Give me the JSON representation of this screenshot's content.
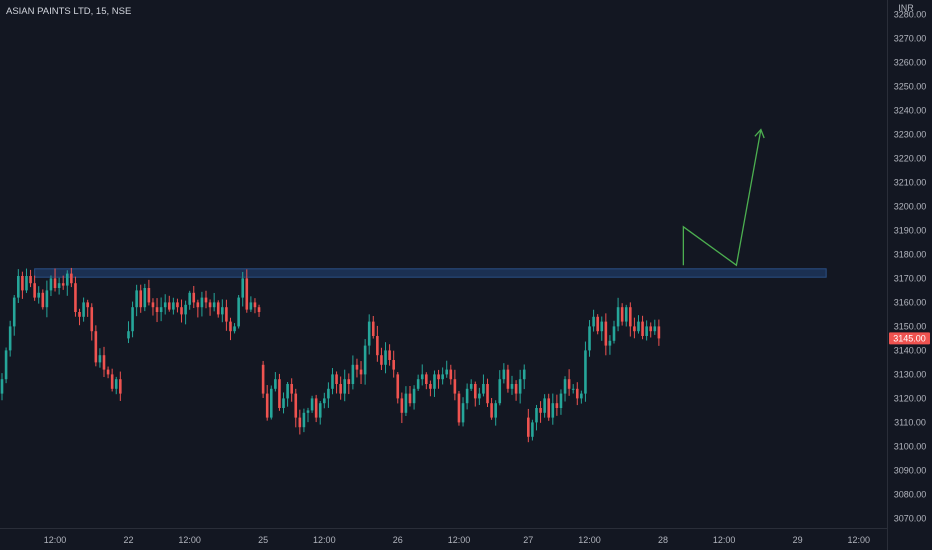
{
  "header": {
    "symbol_title": "ASIAN PAINTS LTD, 15, NSE",
    "currency": "INR"
  },
  "colors": {
    "background": "#131722",
    "up": "#26a69a",
    "down": "#ef5350",
    "zone": "#1f3a63",
    "zone_border": "#2a4f85",
    "arrow": "#4caf50",
    "text": "#b2b5be",
    "last_price_bg": "#ef5350"
  },
  "chart_data": {
    "type": "candlestick",
    "title": "ASIAN PAINTS LTD, 15, NSE",
    "currency": "INR",
    "ylim": [
      3066,
      3286
    ],
    "y_ticks": [
      3280,
      3270,
      3260,
      3250,
      3240,
      3230,
      3220,
      3210,
      3200,
      3190,
      3180,
      3170,
      3160,
      3150,
      3140,
      3130,
      3120,
      3110,
      3100,
      3090,
      3080,
      3070
    ],
    "y_tick_labels": [
      "3280.00",
      "3270.00",
      "3260.00",
      "3250.00",
      "3240.00",
      "3230.00",
      "3220.00",
      "3210.00",
      "3200.00",
      "3190.00",
      "3180.00",
      "3170.00",
      "3160.00",
      "3150.00",
      "3140.00",
      "3130.00",
      "3120.00",
      "3110.00",
      "3100.00",
      "3090.00",
      "3080.00",
      "3070.00"
    ],
    "x_ticks": [
      {
        "label": "12:00",
        "bar": 13
      },
      {
        "label": "22",
        "bar": 31
      },
      {
        "label": "12:00",
        "bar": 46
      },
      {
        "label": "25",
        "bar": 64
      },
      {
        "label": "12:00",
        "bar": 79
      },
      {
        "label": "26",
        "bar": 97
      },
      {
        "label": "12:00",
        "bar": 112
      },
      {
        "label": "27",
        "bar": 129
      },
      {
        "label": "12:00",
        "bar": 144
      },
      {
        "label": "28",
        "bar": 162
      },
      {
        "label": "12:00",
        "bar": 177
      },
      {
        "label": "29",
        "bar": 195
      },
      {
        "label": "12:00",
        "bar": 210
      }
    ],
    "last_price": 3145.0,
    "last_price_label": "3145.00",
    "resistance_zone": {
      "low": 3170.5,
      "high": 3174.0,
      "from_bar": 8,
      "to_bar": 202
    },
    "projection_path": [
      [
        167,
        3175.5
      ],
      [
        167,
        3191.5
      ],
      [
        180,
        3175.5
      ],
      [
        186,
        3232
      ]
    ],
    "days": [
      {
        "start_bar": 0,
        "path": [
          3122,
          3128,
          3140,
          3150,
          3162,
          3171,
          3165,
          3171,
          3168,
          3162,
          3164,
          3158,
          3165,
          3170,
          3166,
          3168,
          3167,
          3172,
          3168,
          3156,
          3154,
          3160,
          3158,
          3148,
          3135,
          3138,
          3132,
          3130,
          3124,
          3128,
          3122
        ]
      },
      {
        "start_bar": 31,
        "path": [
          3145,
          3148,
          3158,
          3165,
          3158,
          3166,
          3160,
          3158,
          3156,
          3158,
          3160,
          3157,
          3160,
          3158,
          3155,
          3159,
          3164,
          3160,
          3158,
          3162,
          3160,
          3158,
          3160,
          3155,
          3158,
          3152,
          3148,
          3150,
          3162,
          3170,
          3157,
          3160,
          3158,
          3156
        ]
      },
      {
        "start_bar": 64,
        "path": [
          3134,
          3122,
          3112,
          3124,
          3128,
          3116,
          3120,
          3126,
          3122,
          3112,
          3108,
          3114,
          3115,
          3120,
          3112,
          3118,
          3120,
          3124,
          3130,
          3126,
          3122,
          3128,
          3126,
          3134,
          3132,
          3130,
          3142,
          3152,
          3146,
          3138,
          3134,
          3140,
          3136,
          3132
        ]
      },
      {
        "start_bar": 97,
        "path": [
          3130,
          3120,
          3114,
          3122,
          3118,
          3124,
          3128,
          3130,
          3126,
          3124,
          3130,
          3128,
          3130,
          3132,
          3128,
          3122,
          3110,
          3118,
          3124,
          3126,
          3120,
          3122,
          3126,
          3118,
          3112,
          3118,
          3128,
          3132,
          3124,
          3126,
          3122,
          3128,
          3132
        ]
      },
      {
        "start_bar": 129,
        "path": [
          3112,
          3104,
          3110,
          3116,
          3114,
          3120,
          3112,
          3118,
          3116,
          3122,
          3128,
          3124,
          3124,
          3120,
          3122,
          3140,
          3150,
          3154,
          3148,
          3152,
          3142,
          3144,
          3150,
          3158,
          3152,
          3158,
          3150,
          3148,
          3152,
          3146,
          3150,
          3148,
          3150,
          3145
        ]
      }
    ]
  }
}
